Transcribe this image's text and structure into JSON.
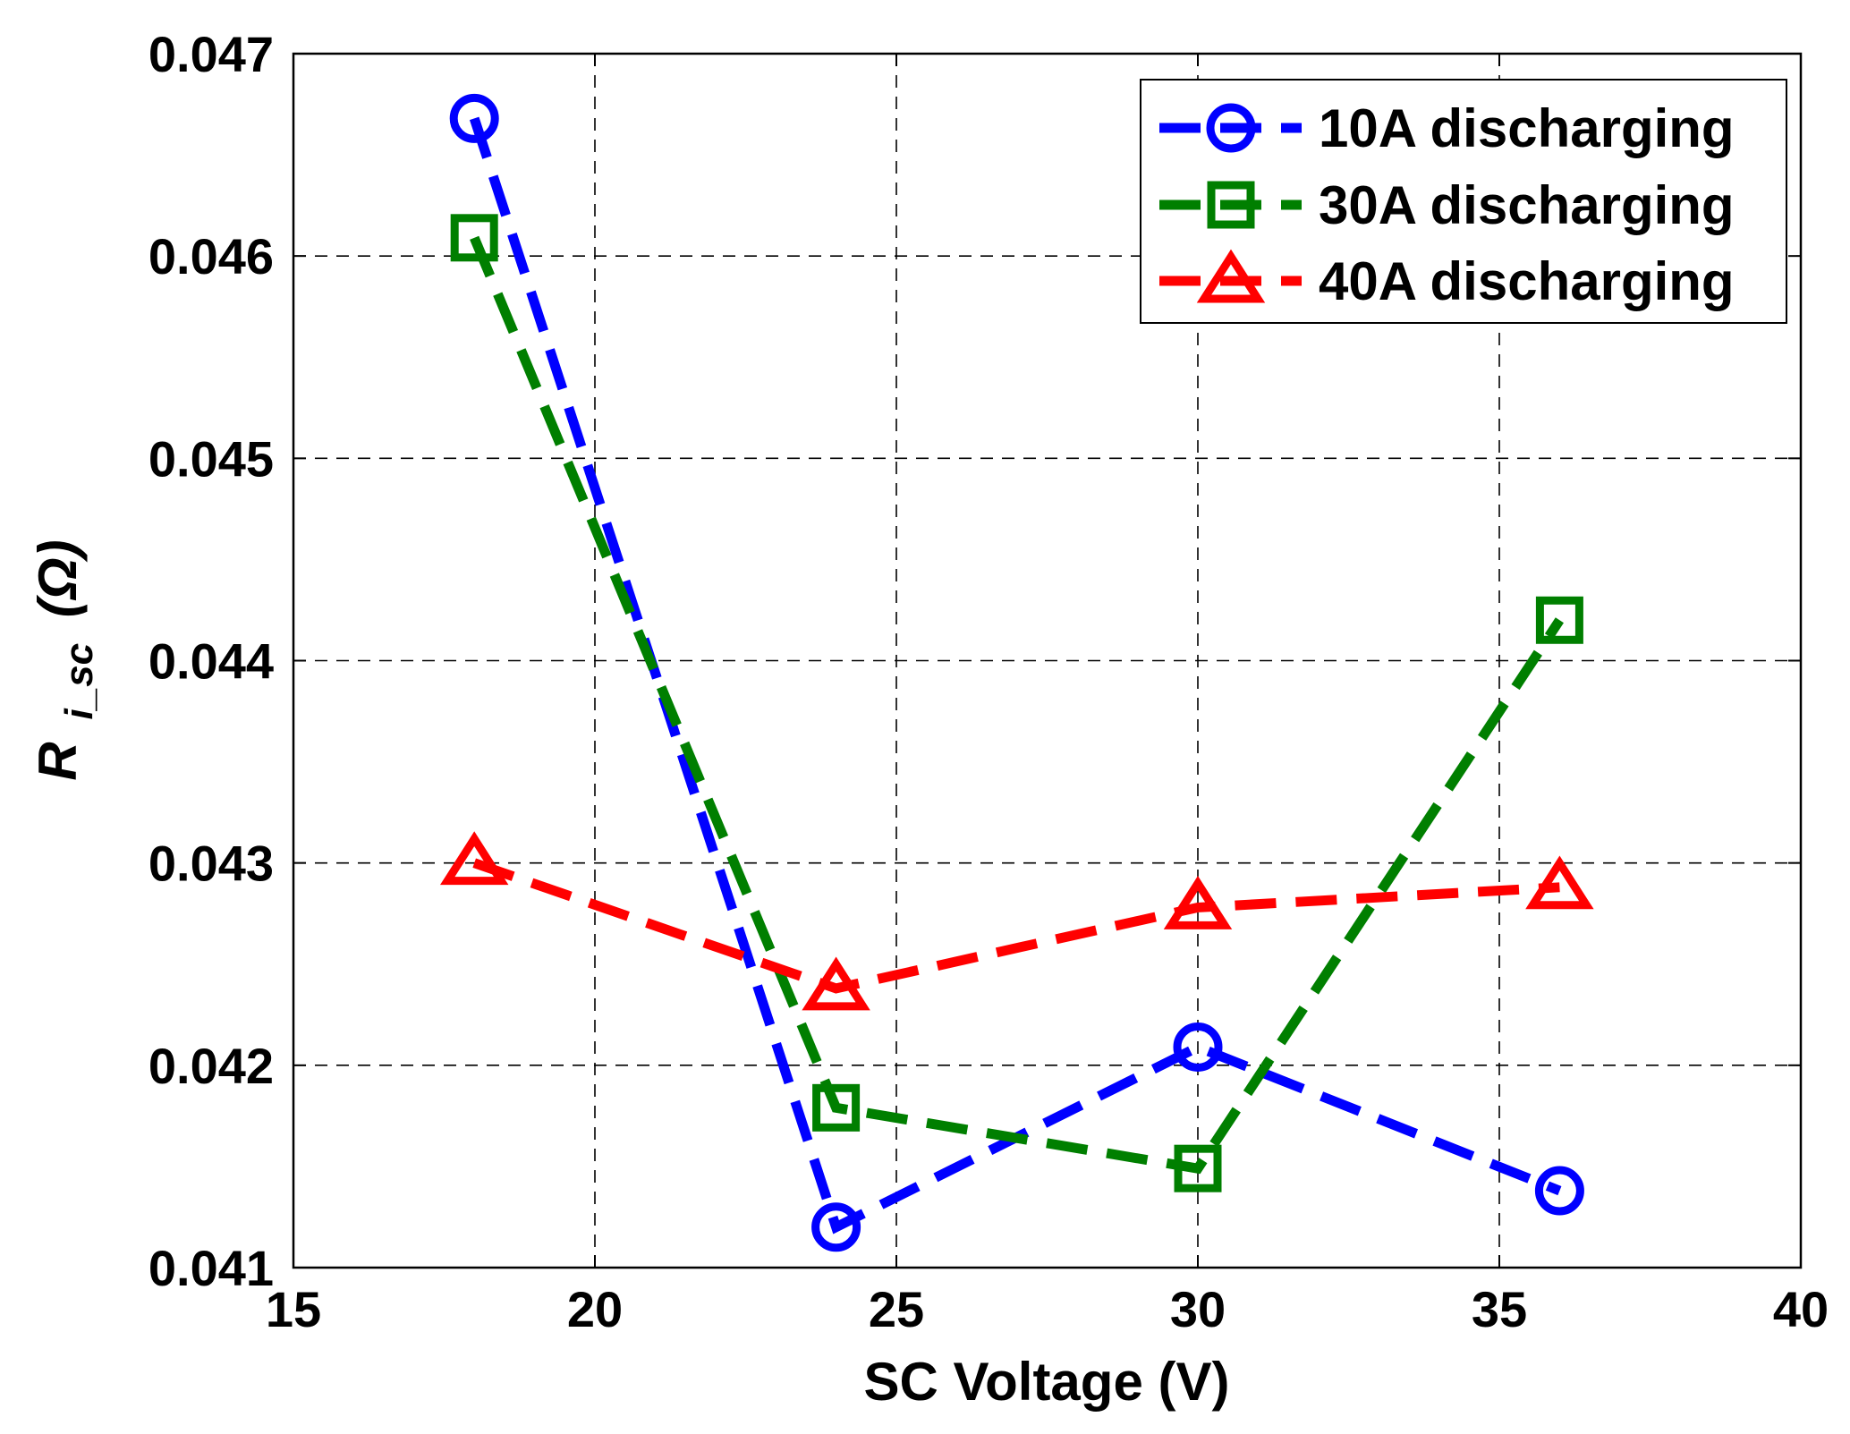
{
  "chart_data": {
    "type": "line",
    "title": "",
    "xlabel": "SC Voltage (V)",
    "ylabel": {
      "main": "R",
      "subscript": "i_sc",
      "unit": "(Ω)"
    },
    "xlim": [
      15,
      40
    ],
    "ylim": [
      0.041,
      0.047
    ],
    "xticks": [
      15,
      20,
      25,
      30,
      35,
      40
    ],
    "yticks": [
      0.041,
      0.042,
      0.043,
      0.044,
      0.045,
      0.046,
      0.047
    ],
    "xtick_labels": [
      "15",
      "20",
      "25",
      "30",
      "35",
      "40"
    ],
    "ytick_labels": [
      "0.041",
      "0.042",
      "0.043",
      "0.044",
      "0.045",
      "0.046",
      "0.047"
    ],
    "grid": true,
    "legend_position": "top-right",
    "x": [
      18,
      24,
      30,
      36
    ],
    "series": [
      {
        "name": "10A discharging",
        "color": "#0000ff",
        "marker": "circle",
        "linestyle": "dashed",
        "values": [
          0.04668,
          0.0412,
          0.04209,
          0.04138
        ]
      },
      {
        "name": "30A discharging",
        "color": "#007f00",
        "marker": "square",
        "linestyle": "dashed",
        "values": [
          0.04609,
          0.04179,
          0.04149,
          0.0442
        ]
      },
      {
        "name": "40A discharging",
        "color": "#ff0000",
        "marker": "triangle",
        "linestyle": "dashed",
        "values": [
          0.043,
          0.04238,
          0.04278,
          0.04288
        ]
      }
    ]
  }
}
